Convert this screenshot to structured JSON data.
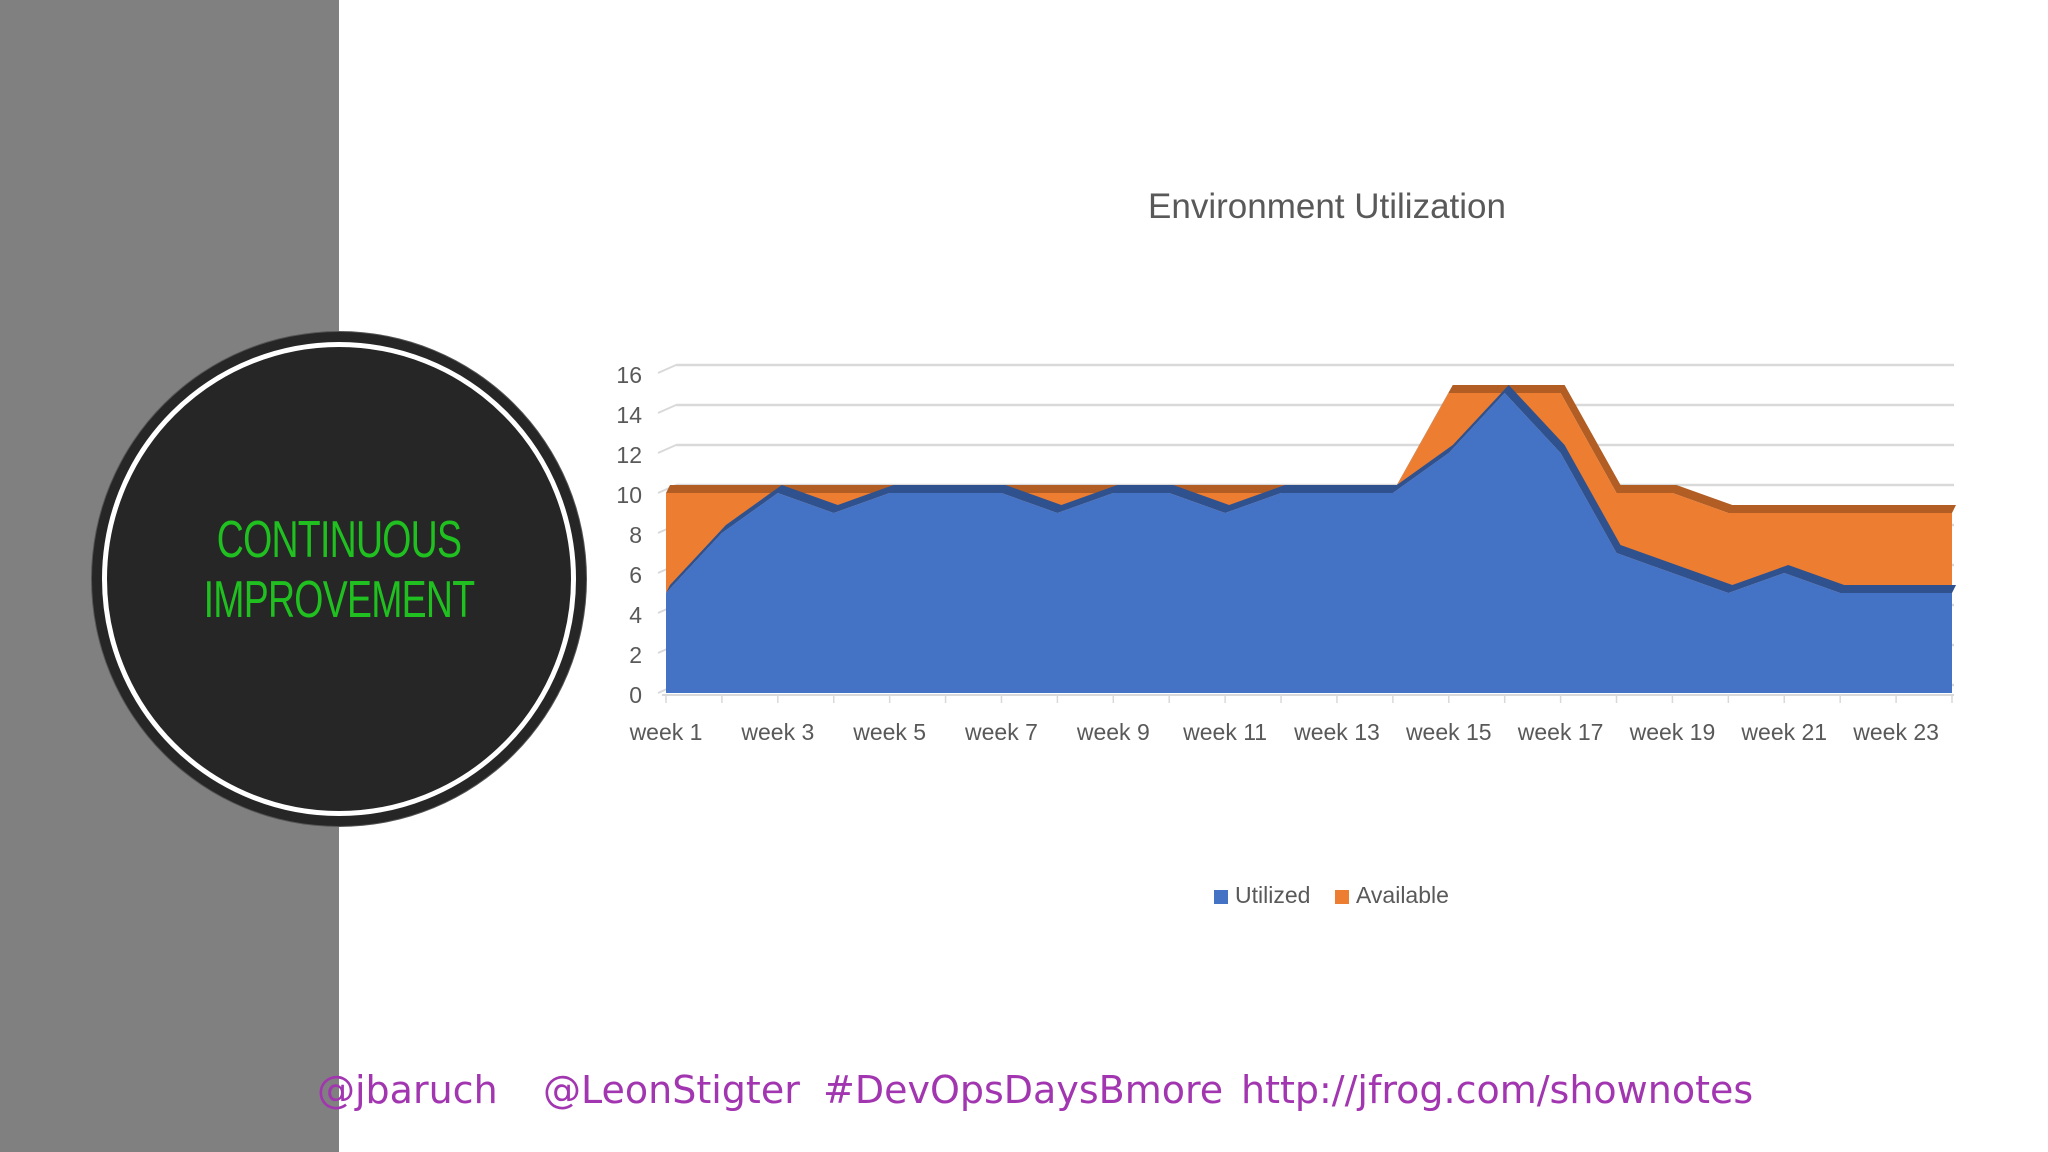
{
  "badge": {
    "line1": "CONTINUOUS",
    "line2": "IMPROVEMENT"
  },
  "colors": {
    "left_band": "#808080",
    "badge_fill": "#262626",
    "badge_text": "#1fc01f",
    "utilized": "#4472c4",
    "available": "#ed7d31",
    "footer_text": "#a236b0"
  },
  "chart_data": {
    "type": "area",
    "title": "Environment Utilization",
    "stacked": true,
    "three_d": true,
    "x": [
      "week 1",
      "week 2",
      "week 3",
      "week 4",
      "week 5",
      "week 6",
      "week 7",
      "week 8",
      "week 9",
      "week 10",
      "week 11",
      "week 12",
      "week 13",
      "week 14",
      "week 15",
      "week 16",
      "week 17",
      "week 18",
      "week 19",
      "week 20",
      "week 21",
      "week 22",
      "week 23",
      "week 24"
    ],
    "x_tick_labels": [
      "week 1",
      "week 3",
      "week 5",
      "week 7",
      "week 9",
      "week 11",
      "week 13",
      "week 15",
      "week 17",
      "week 19",
      "week 21",
      "week 23"
    ],
    "series": [
      {
        "name": "Utilized",
        "color": "#4472c4",
        "values": [
          5,
          8,
          10,
          9,
          10,
          10,
          10,
          9,
          10,
          10,
          9,
          10,
          10,
          10,
          12,
          15,
          12,
          7,
          6,
          5,
          6,
          5,
          5,
          5
        ]
      },
      {
        "name": "Available",
        "color": "#ed7d31",
        "values": [
          5,
          2,
          0,
          1,
          0,
          0,
          0,
          1,
          0,
          0,
          1,
          0,
          0,
          0,
          3,
          0,
          3,
          3,
          4,
          4,
          3,
          4,
          4,
          4
        ]
      }
    ],
    "ylim": [
      0,
      16
    ],
    "y_ticks": [
      0,
      2,
      4,
      6,
      8,
      10,
      12,
      14,
      16
    ],
    "grid": true,
    "legend": "bottom"
  },
  "footer": {
    "handle1": "@jbaruch",
    "handle2": "@LeonStigter",
    "hashtag": "#DevOpsDaysBmore",
    "url": "http://jfrog.com/shownotes"
  }
}
